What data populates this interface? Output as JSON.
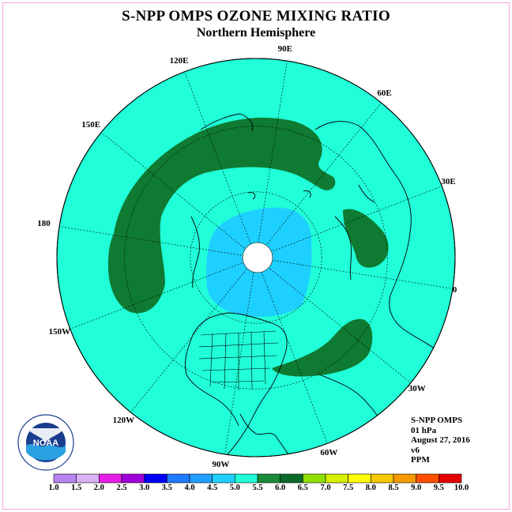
{
  "title": "S-NPP OMPS OZONE MIXING RATIO",
  "subtitle": "Northern Hemisphere",
  "longitude_labels": [
    "90E",
    "60E",
    "30E",
    "0",
    "30W",
    "60W",
    "90W",
    "120W",
    "150W",
    "180",
    "150E",
    "120E"
  ],
  "info": {
    "instrument": "S-NPP OMPS",
    "level": "01 hPa",
    "date": "August 27, 2016",
    "version": "v6",
    "units": "PPM"
  },
  "logo": {
    "text": "NOAA",
    "ring_text": "NATIONAL OCEANIC AND ATMOSPHERIC ADMINISTRATION U.S. DEPARTMENT OF COMMERCE"
  },
  "colorbar": {
    "ticks": [
      "1.0",
      "1.5",
      "2.0",
      "2.5",
      "3.0",
      "3.5",
      "4.0",
      "4.5",
      "5.0",
      "5.5",
      "6.0",
      "6.5",
      "7.0",
      "7.5",
      "8.0",
      "8.5",
      "9.0",
      "9.5",
      "10.0"
    ],
    "colors": [
      "#b784f0",
      "#d8b2f2",
      "#e81ee8",
      "#9f00d9",
      "#0000ff",
      "#1e7bff",
      "#1fa0ff",
      "#1ed0ff",
      "#20ffd8",
      "#1b8a3b",
      "#0b6a2a",
      "#8fe000",
      "#d6f000",
      "#ffff00",
      "#f5c800",
      "#f59a00",
      "#ff5000",
      "#e60000",
      "#7a4e2e"
    ]
  },
  "map_colors": {
    "background_field": "#20ffd8",
    "high_band": "#0f7a32",
    "polar_low": "#1ed0ff",
    "polar_lower": "#1fa0ff",
    "no_data": "#ffffff"
  }
}
